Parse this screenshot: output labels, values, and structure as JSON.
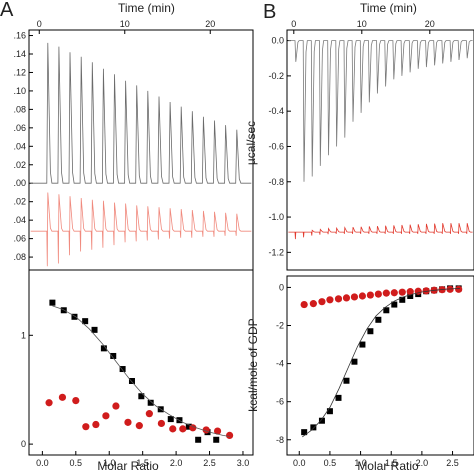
{
  "chart_data": [
    {
      "panel": "A",
      "type": "line",
      "xlabel": "Time (min)",
      "x_ticks": [
        0,
        10,
        20
      ],
      "xlim": [
        -1.2,
        25
      ],
      "y_ticks": [
        0.16,
        0.14,
        0.12,
        0.1,
        0.08,
        0.06,
        0.04,
        0.02,
        0.0,
        -0.02,
        -0.04,
        -0.06,
        -0.08
      ],
      "y_tick_labels": [
        ".16",
        ".14",
        ".12",
        ".10",
        ".08",
        ".06",
        ".04",
        ".02",
        ".00",
        ".02",
        ".04",
        ".06",
        ".08"
      ],
      "ylim": [
        -0.094,
        0.166
      ],
      "series": [
        {
          "color": "#6b6b6b",
          "baseline": 0.0,
          "injection_times": [
            1.0,
            2.3,
            3.6,
            4.9,
            6.2,
            7.5,
            8.8,
            10.1,
            11.4,
            12.7,
            14.0,
            15.3,
            16.6,
            17.9,
            19.2,
            20.5,
            21.8,
            23.1
          ],
          "peak_heights": [
            0.152,
            0.148,
            0.142,
            0.137,
            0.131,
            0.124,
            0.118,
            0.111,
            0.106,
            0.1,
            0.094,
            0.088,
            0.083,
            0.078,
            0.072,
            0.068,
            0.063,
            0.058
          ]
        },
        {
          "color": "#f08a7e",
          "baseline": -0.052,
          "injection_times": [
            1.0,
            2.3,
            3.6,
            4.9,
            6.2,
            7.5,
            8.8,
            10.1,
            11.4,
            12.7,
            14.0,
            15.3,
            16.6,
            17.9,
            19.2,
            20.5,
            21.8,
            23.1
          ],
          "peak_heights": [
            0.042,
            0.04,
            0.038,
            0.036,
            0.034,
            0.033,
            0.031,
            0.03,
            0.028,
            0.027,
            0.026,
            0.025,
            0.024,
            0.023,
            0.022,
            0.021,
            0.02,
            0.019
          ],
          "dip_depths": [
            -0.038,
            -0.035,
            -0.026,
            -0.022,
            -0.02,
            -0.018,
            -0.015,
            -0.012,
            -0.011,
            -0.01,
            -0.009,
            -0.008,
            -0.007,
            -0.007,
            -0.006,
            -0.006,
            -0.005,
            -0.005
          ]
        }
      ]
    },
    {
      "panel": "A",
      "type": "scatter",
      "xlabel": "Molar Ratio",
      "x_ticks": [
        0.0,
        0.5,
        1.0,
        1.5,
        2.0,
        2.5,
        3.0
      ],
      "x_tick_labels": [
        "0.0",
        "0.5",
        "1.0",
        "1.5",
        "2.0",
        "2.5",
        "3.0"
      ],
      "xlim": [
        -0.2,
        3.15
      ],
      "y_ticks": [
        0,
        1
      ],
      "ylim": [
        -0.1,
        1.6
      ],
      "series": [
        {
          "marker": "square",
          "color": "#000000",
          "x": [
            0.15,
            0.32,
            0.48,
            0.64,
            0.78,
            0.92,
            1.06,
            1.2,
            1.34,
            1.48,
            1.62,
            1.77,
            1.92,
            2.05,
            2.19,
            2.33,
            2.47,
            2.6
          ],
          "y": [
            1.3,
            1.23,
            1.17,
            1.13,
            1.05,
            0.88,
            0.81,
            0.69,
            0.58,
            0.44,
            0.38,
            0.32,
            0.23,
            0.22,
            0.16,
            0.04,
            0.11,
            0.04
          ]
        },
        {
          "marker": "circle",
          "color": "#d01c1c",
          "x": [
            0.1,
            0.3,
            0.5,
            0.65,
            0.8,
            0.95,
            1.1,
            1.28,
            1.45,
            1.6,
            1.78,
            1.95,
            2.1,
            2.25,
            2.45,
            2.62,
            2.8
          ],
          "y": [
            0.38,
            0.43,
            0.4,
            0.16,
            0.18,
            0.26,
            0.35,
            0.2,
            0.17,
            0.28,
            0.19,
            0.14,
            0.14,
            0.15,
            0.13,
            0.12,
            0.08
          ]
        },
        {
          "type": "fit",
          "color": "#555555",
          "x": [
            0.15,
            0.3,
            0.5,
            0.7,
            0.9,
            1.1,
            1.3,
            1.5,
            1.7,
            1.9,
            2.1,
            2.3,
            2.5,
            2.7,
            2.8
          ],
          "y": [
            1.27,
            1.24,
            1.17,
            1.06,
            0.92,
            0.76,
            0.6,
            0.46,
            0.35,
            0.27,
            0.2,
            0.15,
            0.11,
            0.08,
            0.07
          ]
        }
      ]
    },
    {
      "panel": "B",
      "type": "line",
      "xlabel": "Time (min)",
      "ylabel": "µcal/sec",
      "x_ticks": [
        0,
        10,
        20
      ],
      "xlim": [
        -1.0,
        26.5
      ],
      "y_ticks": [
        0.0,
        -0.2,
        -0.4,
        -0.6,
        -0.8,
        -1.0,
        -1.2
      ],
      "y_tick_labels": [
        "0.0",
        "-0.2",
        "-0.4",
        "-0.6",
        "-0.8",
        "-1.0",
        "-1.2"
      ],
      "ylim": [
        -1.3,
        0.06
      ],
      "series": [
        {
          "color": "#7a7a7a",
          "baseline": 0.0,
          "injection_times": [
            0.3,
            1.5,
            2.7,
            3.9,
            5.1,
            6.3,
            7.5,
            8.7,
            9.9,
            11.1,
            12.3,
            13.5,
            14.7,
            15.9,
            17.1,
            18.3,
            19.5,
            20.7,
            21.9,
            23.1,
            24.3,
            25.5
          ],
          "peak_depths": [
            -0.12,
            -0.8,
            -0.77,
            -0.71,
            -0.65,
            -0.6,
            -0.55,
            -0.46,
            -0.41,
            -0.35,
            -0.3,
            -0.26,
            -0.22,
            -0.2,
            -0.18,
            -0.16,
            -0.15,
            -0.14,
            -0.13,
            -0.12,
            -0.11,
            -0.1
          ]
        },
        {
          "color": "#e23a2e",
          "baseline": -1.085,
          "injection_times": [
            0.3,
            1.5,
            2.7,
            3.9,
            5.1,
            6.3,
            7.5,
            8.7,
            9.9,
            11.1,
            12.3,
            13.5,
            14.7,
            15.9,
            17.1,
            18.3,
            19.5,
            20.7,
            21.9,
            23.1,
            24.3,
            25.5
          ],
          "peak_heights": [
            0.0,
            0.0,
            0.01,
            0.015,
            0.02,
            0.022,
            0.025,
            0.028,
            0.03,
            0.032,
            0.034,
            0.036,
            0.038,
            0.04,
            0.042,
            0.044,
            0.046,
            0.048,
            0.05,
            0.05,
            0.05,
            0.05
          ],
          "dip_depths": [
            -0.04,
            -0.03,
            -0.02,
            -0.015,
            -0.012,
            -0.01,
            -0.01,
            -0.01,
            -0.01,
            -0.01,
            -0.01,
            -0.01,
            -0.01,
            -0.01,
            -0.01,
            -0.01,
            -0.01,
            -0.01,
            -0.01,
            -0.01,
            -0.01,
            -0.01
          ]
        }
      ]
    },
    {
      "panel": "B",
      "type": "scatter",
      "xlabel": "Molar Ratio",
      "ylabel": "kcal/mole of GDP",
      "x_ticks": [
        0.0,
        0.5,
        1.0,
        1.5,
        2.0,
        2.5
      ],
      "x_tick_labels": [
        "0.0",
        "0.5",
        "1.0",
        "1.5",
        "2.0",
        "2.5"
      ],
      "xlim": [
        -0.2,
        2.85
      ],
      "y_ticks": [
        0,
        -2,
        -4,
        -6,
        -8
      ],
      "ylim": [
        -8.8,
        0.6
      ],
      "series": [
        {
          "marker": "square",
          "color": "#000000",
          "x": [
            0.08,
            0.23,
            0.37,
            0.5,
            0.64,
            0.77,
            0.9,
            1.03,
            1.16,
            1.29,
            1.42,
            1.55,
            1.68,
            1.81,
            1.94,
            2.07,
            2.2,
            2.33,
            2.46,
            2.6
          ],
          "y": [
            -7.6,
            -7.35,
            -7.0,
            -6.5,
            -5.8,
            -4.9,
            -3.9,
            -3.0,
            -2.3,
            -1.7,
            -1.2,
            -0.9,
            -0.65,
            -0.45,
            -0.35,
            -0.2,
            -0.15,
            -0.1,
            -0.05,
            -0.05
          ]
        },
        {
          "marker": "circle",
          "color": "#d01c1c",
          "x": [
            0.08,
            0.23,
            0.37,
            0.5,
            0.64,
            0.77,
            0.9,
            1.03,
            1.16,
            1.29,
            1.42,
            1.55,
            1.68,
            1.81,
            1.94,
            2.07,
            2.2,
            2.33,
            2.46,
            2.6
          ],
          "y": [
            -0.9,
            -0.85,
            -0.75,
            -0.65,
            -0.6,
            -0.55,
            -0.5,
            -0.45,
            -0.4,
            -0.35,
            -0.3,
            -0.28,
            -0.25,
            -0.22,
            -0.2,
            -0.18,
            -0.15,
            -0.12,
            -0.1,
            -0.1
          ]
        },
        {
          "type": "fit",
          "color": "#333333",
          "x": [
            0.05,
            0.2,
            0.35,
            0.5,
            0.65,
            0.8,
            0.95,
            1.1,
            1.25,
            1.4,
            1.55,
            1.7,
            1.85,
            2.0,
            2.2,
            2.4,
            2.62
          ],
          "y": [
            -7.85,
            -7.5,
            -7.0,
            -6.3,
            -5.3,
            -4.2,
            -3.1,
            -2.2,
            -1.5,
            -1.05,
            -0.72,
            -0.5,
            -0.35,
            -0.24,
            -0.15,
            -0.09,
            -0.05
          ]
        }
      ]
    }
  ],
  "labels": {
    "panel_a_letter": "A",
    "panel_b_letter": "B"
  }
}
